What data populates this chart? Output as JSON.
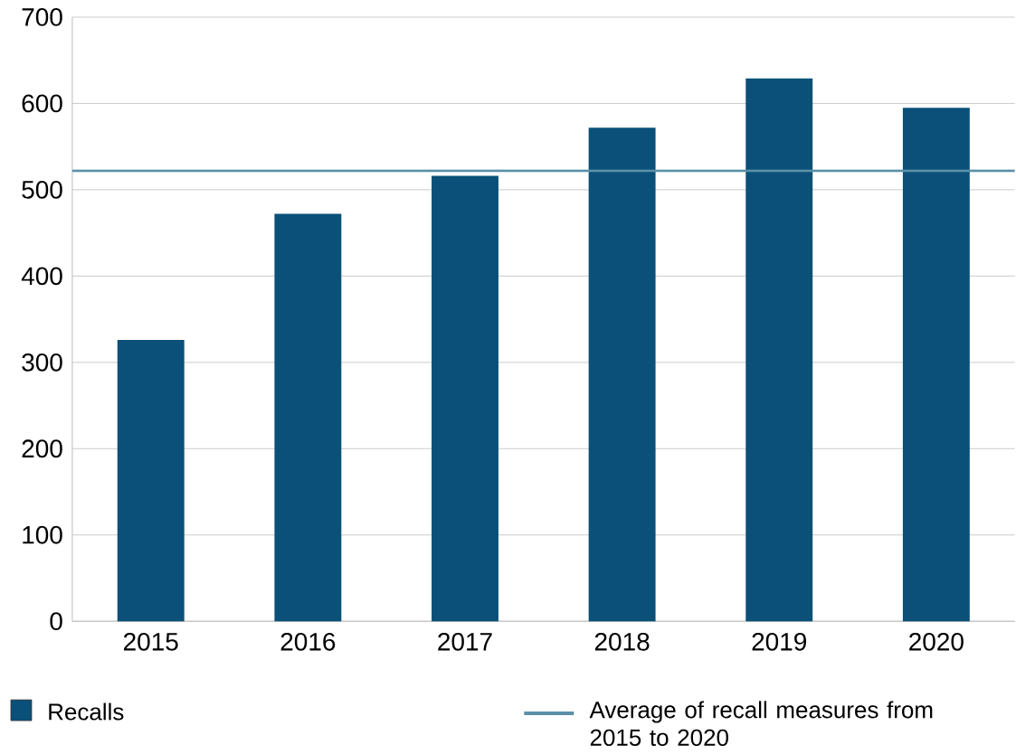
{
  "chart_data": {
    "type": "bar",
    "categories": [
      "2015",
      "2016",
      "2017",
      "2018",
      "2019",
      "2020"
    ],
    "series": [
      {
        "name": "Recalls",
        "color": "#0a5078",
        "values": [
          326,
          472,
          516,
          572,
          629,
          595
        ]
      }
    ],
    "ylim": [
      0,
      700
    ],
    "yticks": [
      0,
      100,
      200,
      300,
      400,
      500,
      600,
      700
    ],
    "grid": "y",
    "legend": "bottom",
    "ref_lines": [
      {
        "axis": "y",
        "value": 522,
        "label": "Average of recall measures from 2015 to 2020",
        "color": "#5b8fa8",
        "line_style": "solid"
      }
    ]
  }
}
